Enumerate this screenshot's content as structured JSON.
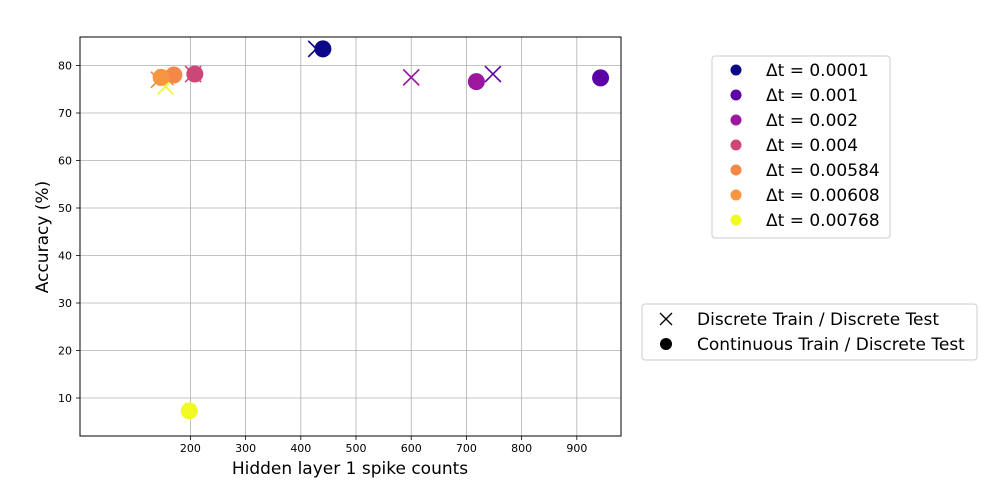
{
  "chart_data": {
    "type": "scatter",
    "xlabel": "Hidden layer 1 spike counts",
    "ylabel": "Accuracy (%)",
    "xlim": [
      0,
      980
    ],
    "ylim": [
      2,
      86
    ],
    "xticks": [
      "200",
      "300",
      "400",
      "500",
      "600",
      "700",
      "800",
      "900"
    ],
    "xtick_values": [
      200,
      300,
      400,
      500,
      600,
      700,
      800,
      900
    ],
    "yticks": [
      "10",
      "20",
      "30",
      "40",
      "50",
      "60",
      "70",
      "80"
    ],
    "ytick_values": [
      10,
      20,
      30,
      40,
      50,
      60,
      70,
      80
    ],
    "grid": true,
    "series": [
      {
        "name": "Δt = 0.0001",
        "color": "#0d0887",
        "discrete": [
          [
            428,
            83.5
          ]
        ],
        "continuous": [
          [
            440,
            83.5
          ]
        ]
      },
      {
        "name": "Δt = 0.001",
        "color": "#5c01a6",
        "discrete": [
          [
            748,
            78.2
          ]
        ],
        "continuous": [
          [
            943,
            77.4
          ]
        ]
      },
      {
        "name": "Δt = 0.002",
        "color": "#9c179e",
        "discrete": [
          [
            600,
            77.5
          ]
        ],
        "continuous": [
          [
            718,
            76.6
          ]
        ]
      },
      {
        "name": "Δt = 0.004",
        "color": "#cc4778",
        "discrete": [
          [
            205,
            78.2
          ]
        ],
        "continuous": [
          [
            208,
            78.2
          ]
        ]
      },
      {
        "name": "Δt = 0.00584",
        "color": "#f48849",
        "discrete": [
          [
            143,
            77.0
          ]
        ],
        "continuous": [
          [
            170,
            78.0
          ]
        ]
      },
      {
        "name": "Δt = 0.00608",
        "color": "#f89540",
        "discrete": [
          [
            155,
            77.5
          ]
        ],
        "continuous": [
          [
            147,
            77.5
          ]
        ]
      },
      {
        "name": "Δt = 0.00768",
        "color": "#f0f921",
        "discrete": [
          [
            155,
            75.6
          ]
        ],
        "continuous": [
          [
            198,
            7.3
          ]
        ]
      }
    ],
    "marker_legend": [
      {
        "marker": "x",
        "label": "Discrete Train / Discrete Test"
      },
      {
        "marker": "circle",
        "label": "Continuous Train / Discrete Test"
      }
    ]
  }
}
